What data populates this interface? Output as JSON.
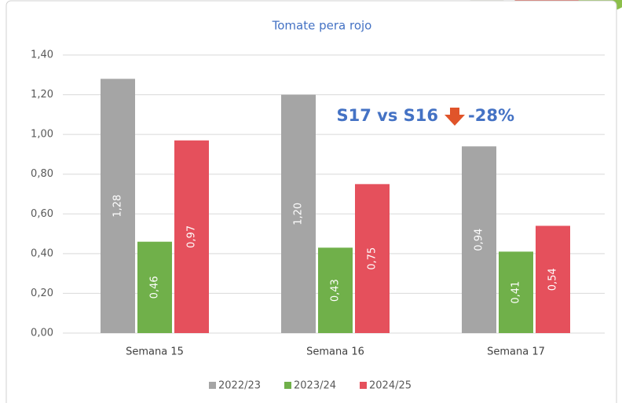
{
  "chart_data": {
    "type": "bar",
    "title": "Tomate pera rojo",
    "categories": [
      "Semana 15",
      "Semana 16",
      "Semana 17"
    ],
    "series": [
      {
        "name": "2022/23",
        "color": "#a5a5a5",
        "values": [
          1.28,
          1.2,
          0.94
        ],
        "value_labels": [
          "1,28",
          "1,20",
          "0,94"
        ]
      },
      {
        "name": "2023/24",
        "color": "#70b04a",
        "values": [
          0.46,
          0.43,
          0.41
        ],
        "value_labels": [
          "0,46",
          "0,43",
          "0,41"
        ]
      },
      {
        "name": "2024/25",
        "color": "#e5505c",
        "values": [
          0.97,
          0.75,
          0.54
        ],
        "value_labels": [
          "0,97",
          "0,75",
          "0,54"
        ]
      }
    ],
    "ylim": [
      0,
      1.4
    ],
    "yticks": [
      {
        "value": 0,
        "label": "0,00"
      },
      {
        "value": 0.2,
        "label": "0,20"
      },
      {
        "value": 0.4,
        "label": "0,40"
      },
      {
        "value": 0.6,
        "label": "0,60"
      },
      {
        "value": 0.8,
        "label": "0,80"
      },
      {
        "value": 1.0,
        "label": "1,00"
      },
      {
        "value": 1.2,
        "label": "1,20"
      },
      {
        "value": 1.4,
        "label": "1,40"
      }
    ],
    "grid": true,
    "legend": "bottom",
    "annotation": {
      "text": "S17 vs S16",
      "change": "-28%",
      "color": "#4472c4"
    }
  }
}
